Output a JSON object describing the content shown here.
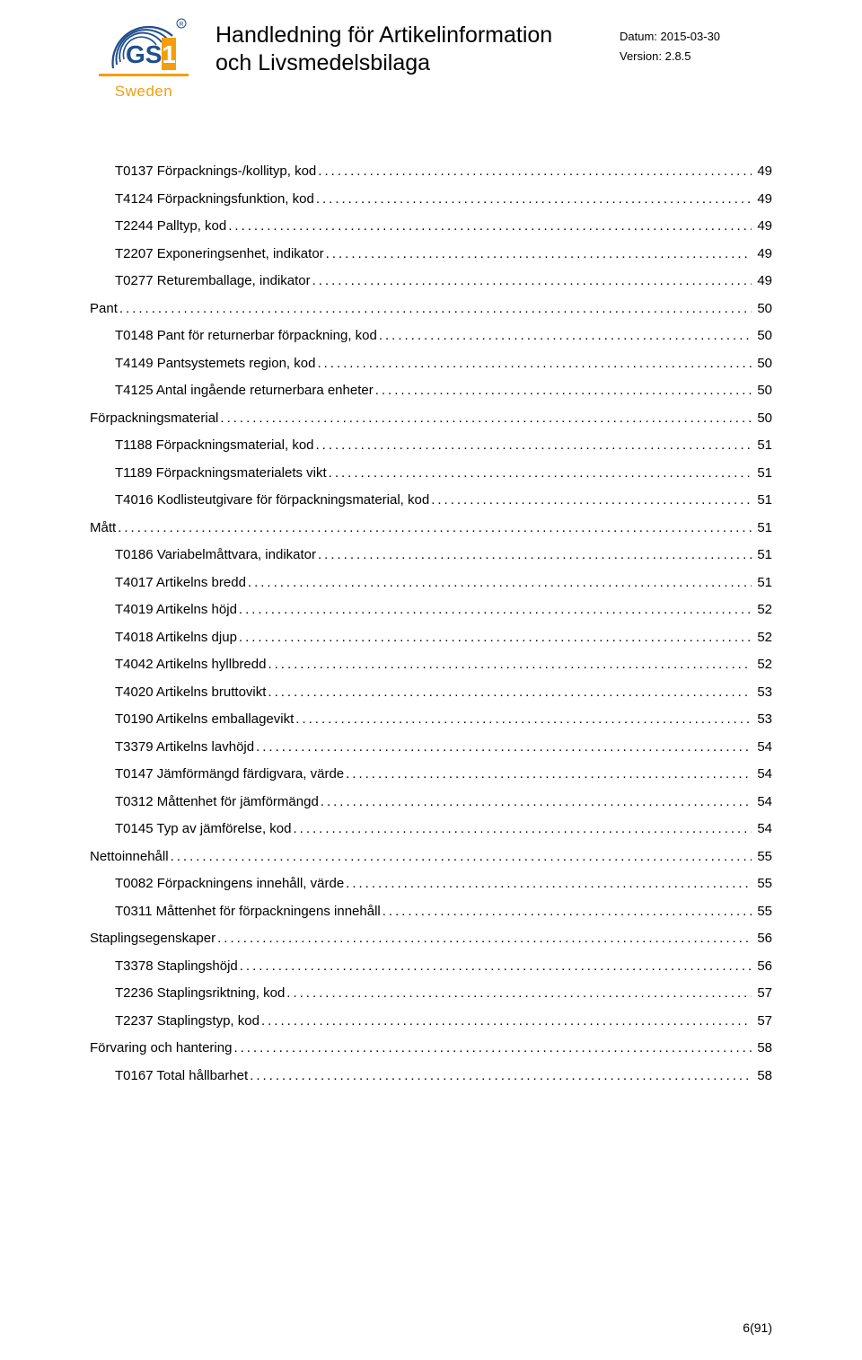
{
  "header": {
    "logo_text": "1",
    "logo_sweden": "Sweden",
    "title_line1": "Handledning för Artikelinformation",
    "title_line2": "och Livsmedelsbilaga",
    "date_label": "Datum:",
    "date_value": "2015-03-30",
    "version_label": "Version:",
    "version_value": "2.8.5"
  },
  "toc": [
    {
      "level": "item",
      "label": "T0137 Förpacknings-/kollityp, kod",
      "page": "49"
    },
    {
      "level": "item",
      "label": "T4124 Förpackningsfunktion, kod",
      "page": "49"
    },
    {
      "level": "item",
      "label": "T2244 Palltyp, kod",
      "page": "49"
    },
    {
      "level": "item",
      "label": "T2207 Exponeringsenhet, indikator",
      "page": "49"
    },
    {
      "level": "item",
      "label": "T0277 Returemballage, indikator",
      "page": "49"
    },
    {
      "level": "section",
      "label": "Pant",
      "page": "50"
    },
    {
      "level": "item",
      "label": "T0148 Pant för returnerbar förpackning, kod",
      "page": "50"
    },
    {
      "level": "item",
      "label": "T4149 Pantsystemets region, kod",
      "page": "50"
    },
    {
      "level": "item",
      "label": "T4125 Antal ingående returnerbara enheter",
      "page": "50"
    },
    {
      "level": "section",
      "label": "Förpackningsmaterial",
      "page": "50"
    },
    {
      "level": "item",
      "label": "T1188 Förpackningsmaterial, kod",
      "page": "51"
    },
    {
      "level": "item",
      "label": "T1189 Förpackningsmaterialets vikt",
      "page": "51"
    },
    {
      "level": "item",
      "label": "T4016 Kodlisteutgivare för förpackningsmaterial, kod",
      "page": "51"
    },
    {
      "level": "section",
      "label": "Mått",
      "page": "51"
    },
    {
      "level": "item",
      "label": "T0186 Variabelmåttvara, indikator",
      "page": "51"
    },
    {
      "level": "item",
      "label": "T4017 Artikelns bredd",
      "page": "51"
    },
    {
      "level": "item",
      "label": "T4019 Artikelns höjd",
      "page": "52"
    },
    {
      "level": "item",
      "label": "T4018 Artikelns djup",
      "page": "52"
    },
    {
      "level": "item",
      "label": "T4042 Artikelns hyllbredd",
      "page": "52"
    },
    {
      "level": "item",
      "label": "T4020 Artikelns bruttovikt",
      "page": "53"
    },
    {
      "level": "item",
      "label": "T0190 Artikelns emballagevikt",
      "page": "53"
    },
    {
      "level": "item",
      "label": "T3379 Artikelns lavhöjd",
      "page": "54"
    },
    {
      "level": "item",
      "label": "T0147 Jämförmängd färdigvara, värde",
      "page": "54"
    },
    {
      "level": "item",
      "label": "T0312 Måttenhet för jämförmängd",
      "page": "54"
    },
    {
      "level": "item",
      "label": "T0145 Typ av jämförelse, kod",
      "page": "54"
    },
    {
      "level": "section",
      "label": "Nettoinnehåll",
      "page": "55"
    },
    {
      "level": "item",
      "label": "T0082 Förpackningens innehåll, värde",
      "page": "55"
    },
    {
      "level": "item",
      "label": "T0311 Måttenhet för förpackningens innehåll",
      "page": "55"
    },
    {
      "level": "section",
      "label": "Staplingsegenskaper",
      "page": "56"
    },
    {
      "level": "item",
      "label": "T3378 Staplingshöjd",
      "page": "56"
    },
    {
      "level": "item",
      "label": "T2236 Staplingsriktning, kod",
      "page": "57"
    },
    {
      "level": "item",
      "label": "T2237 Staplingstyp, kod",
      "page": "57"
    },
    {
      "level": "section",
      "label": "Förvaring och hantering",
      "page": "58"
    },
    {
      "level": "item",
      "label": "T0167 Total hållbarhet",
      "page": "58"
    }
  ],
  "footer": {
    "page_current": "6",
    "page_total": "91"
  },
  "colors": {
    "brand_blue": "#1f4e8c",
    "brand_orange": "#f59e0b",
    "text": "#000000",
    "background": "#ffffff"
  },
  "typography": {
    "title_fontsize_pt": 19,
    "body_fontsize_pt": 11,
    "meta_fontsize_pt": 10,
    "font_family": "Arial"
  }
}
